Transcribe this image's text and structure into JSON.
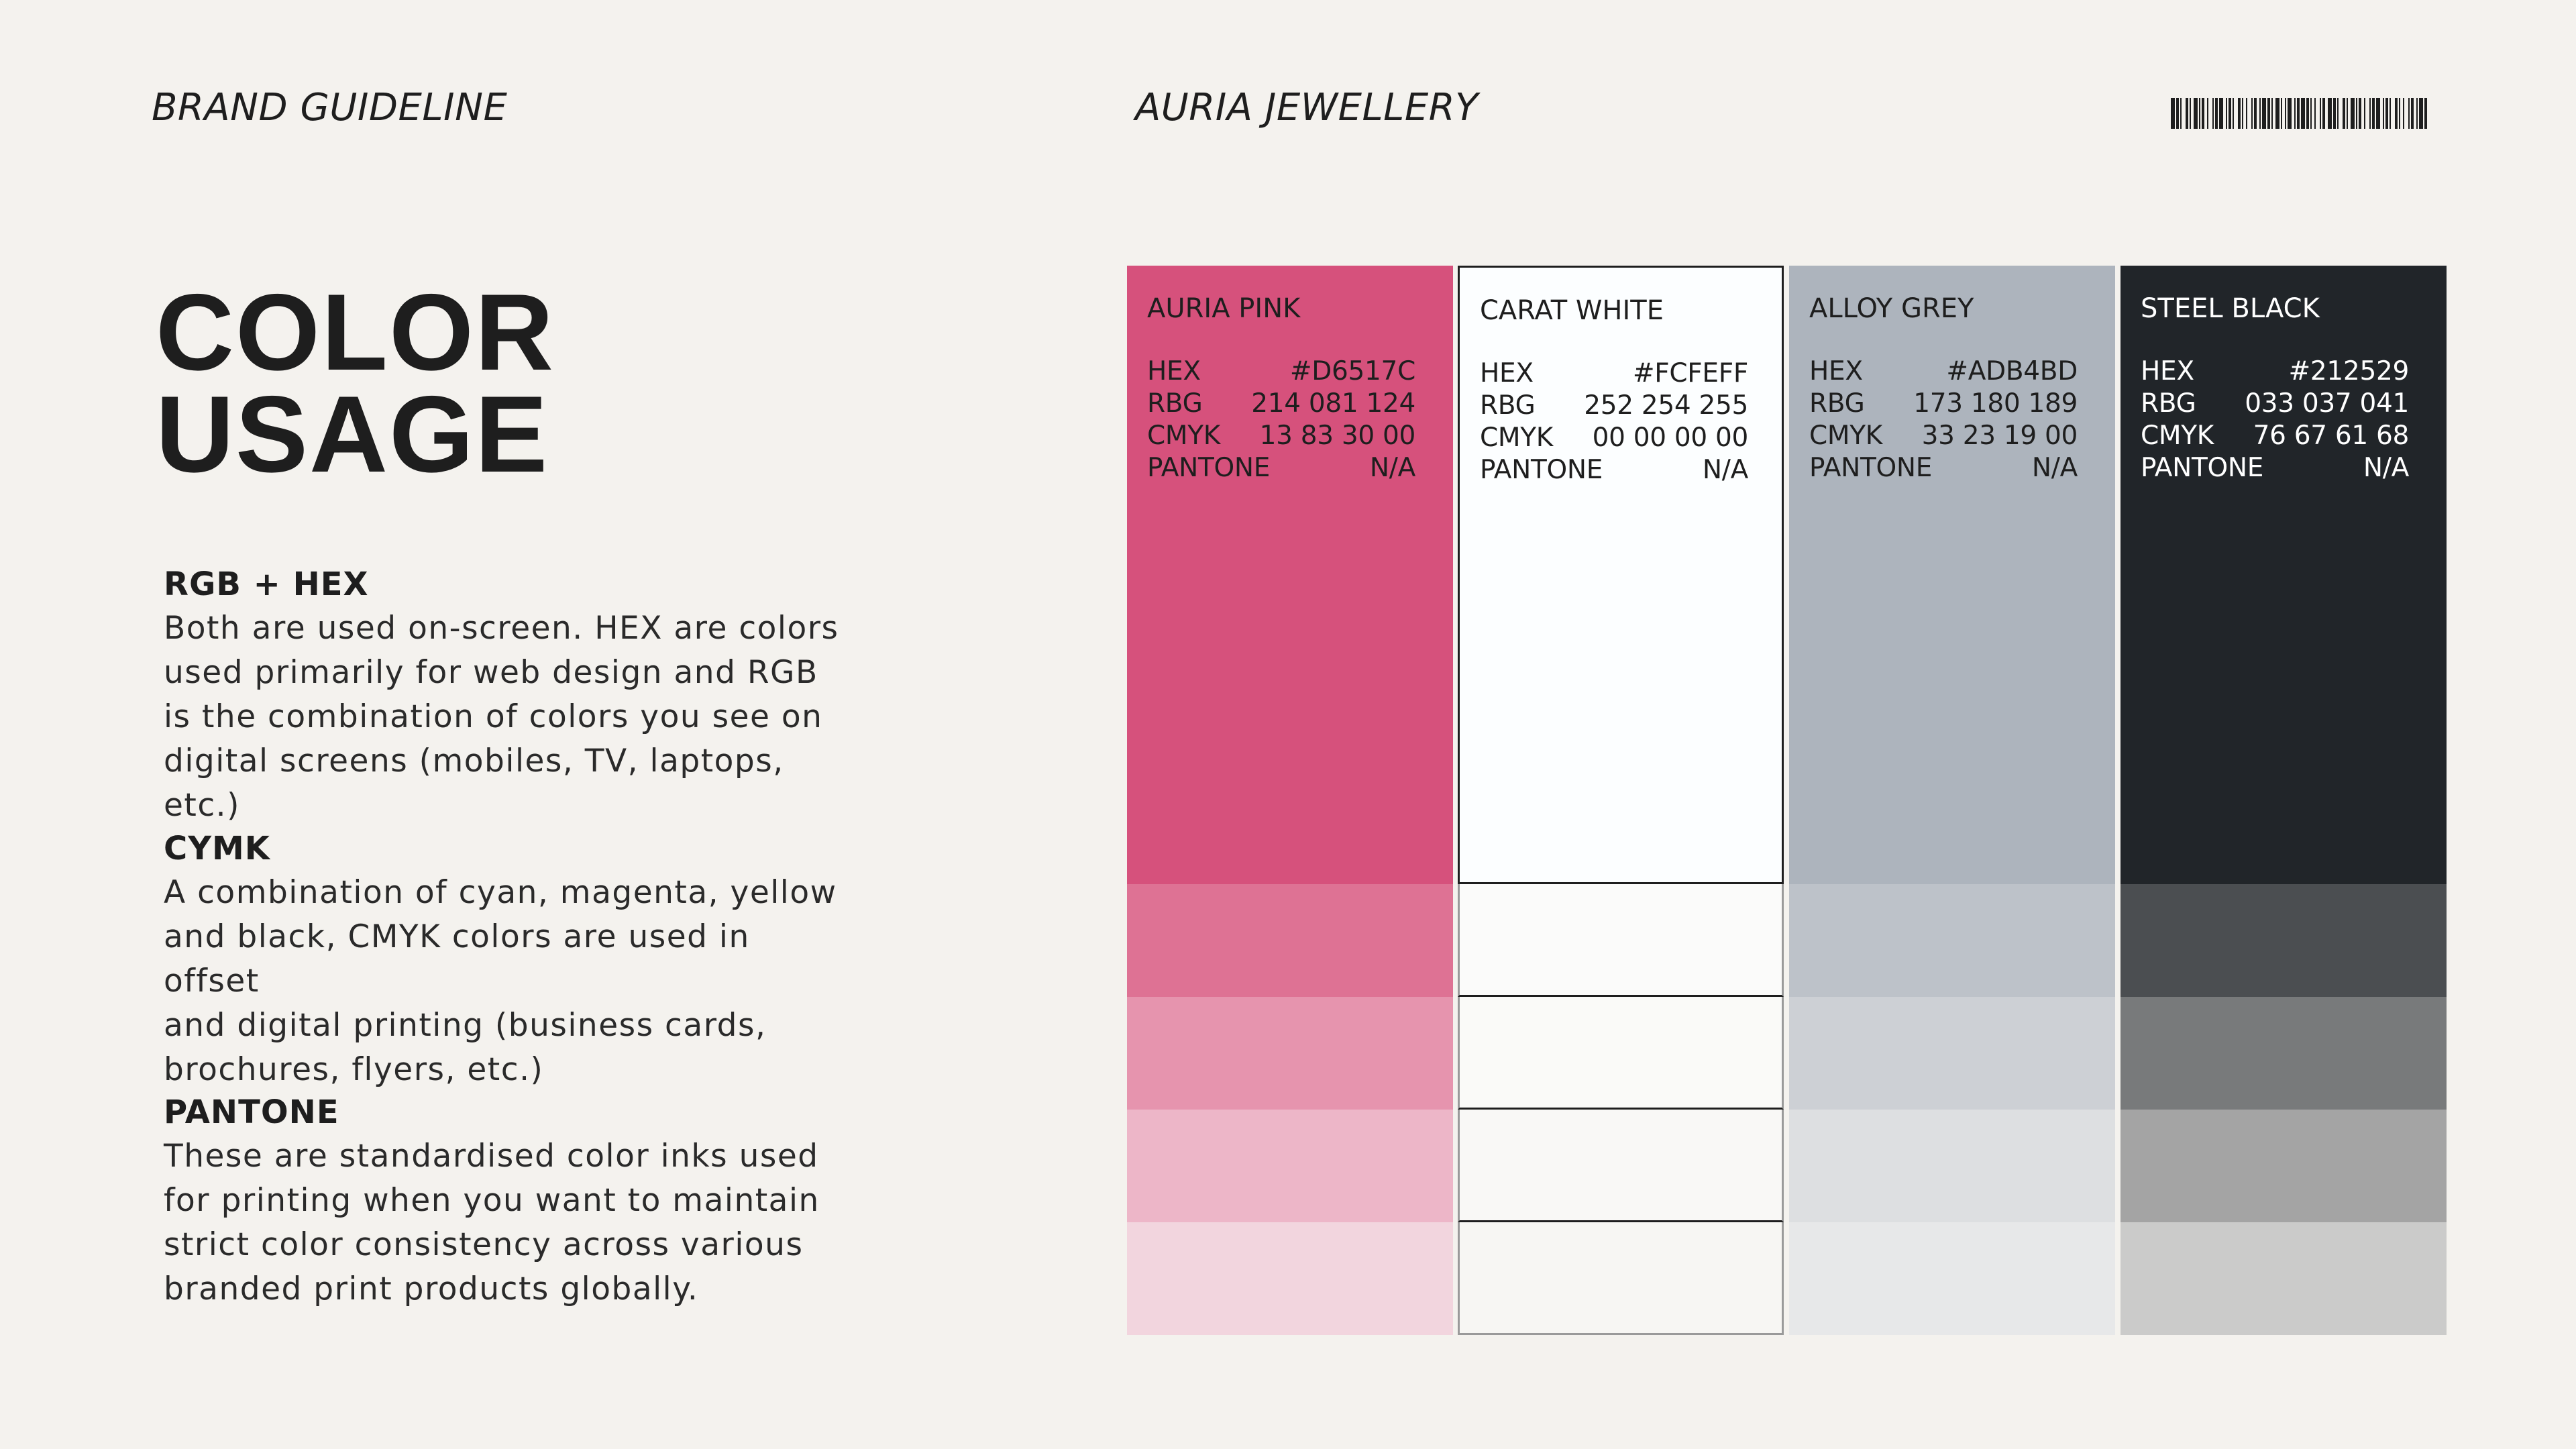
{
  "header": {
    "left": "BRAND GUIDELINE",
    "center": "AURIA JEWELLERY"
  },
  "barcode_icon": "barcode-icon",
  "title": {
    "line1": "COLOR",
    "line2": "USAGE"
  },
  "sections": [
    {
      "title": "RGB + HEX",
      "lines": [
        "Both are used on-screen. HEX are colors",
        "used primarily for web design and RGB",
        "is the combination of colors you see on",
        "digital screens (mobiles, TV, laptops, etc.)"
      ]
    },
    {
      "title": "CYMK",
      "lines": [
        "A combination of cyan, magenta, yellow",
        "and black, CMYK colors are used in offset",
        "and digital printing (business cards,",
        "brochures, flyers, etc.)"
      ]
    },
    {
      "title": "PANTONE",
      "lines": [
        "These are standardised color inks used",
        "for printing when you want to maintain",
        "strict color consistency across various",
        "branded print products globally."
      ]
    }
  ],
  "spec_labels": {
    "hex": "HEX",
    "rgb": "RBG",
    "cmyk": "CMYK",
    "pantone": "PANTONE"
  },
  "swatches": [
    {
      "name": "AURIA PINK",
      "hex": "#D6517C",
      "rgb": "214 081 124",
      "cmyk": "13 83 30 00",
      "pantone": "N/A",
      "color": "#D6517C",
      "tints": [
        "#DE7294",
        "#E694AE",
        "#EDB6C8",
        "#F2D5DE"
      ]
    },
    {
      "name": "CARAT WHITE",
      "hex": "#FCFEFF",
      "rgb": "252 254 255",
      "cmyk": "00 00 00 00",
      "pantone": "N/A",
      "color": "#FCFEFF",
      "tints": [
        "#FBFBFA",
        "#FAFAF8",
        "#F9F8F6",
        "#F7F6F3"
      ]
    },
    {
      "name": "ALLOY GREY",
      "hex": "#ADB4BD",
      "rgb": "173 180 189",
      "cmyk": "33 23 19 00",
      "pantone": "N/A",
      "color": "#ADB4BD",
      "tints": [
        "#BDC2C9",
        "#CDD0D5",
        "#DDDFE1",
        "#E7E8E9"
      ]
    },
    {
      "name": "STEEL BLACK",
      "hex": "#212529",
      "rgb": "033 037 041",
      "cmyk": "76 67 61 68",
      "pantone": "N/A",
      "color": "#212529",
      "tints": [
        "#4B4E51",
        "#787A7B",
        "#A4A4A4",
        "#CBCBCA"
      ]
    }
  ]
}
